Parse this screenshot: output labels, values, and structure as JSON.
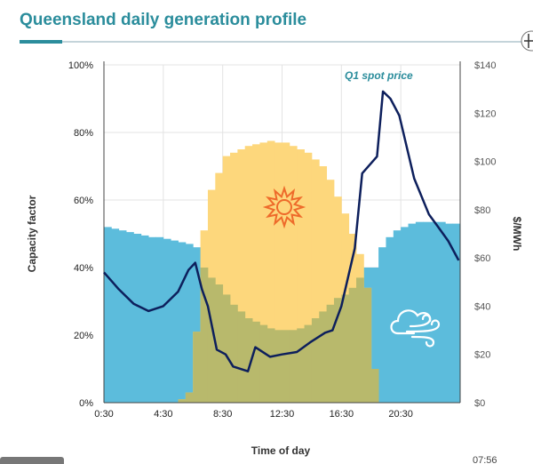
{
  "header": {
    "title": "Queensland daily generation profile",
    "expand_icon": "plus-circle-icon"
  },
  "colors": {
    "title": "#2b8d9c",
    "wind": "#5cbcdc",
    "solar": "#fdd77c",
    "overlap": "#b8b96c",
    "price": "#0d1f5c",
    "annotation": "#2b8d9c",
    "sun_icon": "#ee6a2a"
  },
  "icons": {
    "solar": "sun-icon",
    "wind": "cloud-wind-icon"
  },
  "video": {
    "timestamp": "07:56"
  },
  "chart_data": {
    "type": "area",
    "title": "Queensland daily generation profile",
    "xlabel": "Time of day",
    "ylabel": "Capacity factor",
    "y2label": "$/MWh",
    "ylim": [
      0,
      100
    ],
    "y2lim": [
      0,
      140
    ],
    "xlim": [
      "0:30",
      "24:30"
    ],
    "xticks": [
      "0:30",
      "4:30",
      "8:30",
      "12:30",
      "16:30",
      "20:30"
    ],
    "yticks": [
      "0%",
      "20%",
      "40%",
      "60%",
      "80%",
      "100%"
    ],
    "y2ticks": [
      "$0",
      "$20",
      "$40",
      "$60",
      "$80",
      "$100",
      "$120",
      "$140"
    ],
    "grid": true,
    "times": [
      "0:30",
      "1:00",
      "1:30",
      "2:00",
      "2:30",
      "3:00",
      "3:30",
      "4:00",
      "4:30",
      "5:00",
      "5:30",
      "6:00",
      "6:30",
      "7:00",
      "7:30",
      "8:00",
      "8:30",
      "9:00",
      "9:30",
      "10:00",
      "10:30",
      "11:00",
      "11:30",
      "12:00",
      "12:30",
      "13:00",
      "13:30",
      "14:00",
      "14:30",
      "15:00",
      "15:30",
      "16:00",
      "16:30",
      "17:00",
      "17:30",
      "18:00",
      "18:30",
      "19:00",
      "19:30",
      "20:00",
      "20:30",
      "21:00",
      "21:30",
      "22:00",
      "22:30",
      "23:00",
      "23:30",
      "24:00"
    ],
    "series": [
      {
        "key": "wind",
        "axis": "left",
        "values": [
          52,
          51.5,
          51,
          50.5,
          50,
          49.5,
          49,
          49,
          48.5,
          48,
          47.5,
          47,
          46,
          40,
          37,
          35,
          32,
          29,
          27,
          25,
          24,
          23,
          22,
          21.5,
          21.5,
          21.5,
          22,
          23,
          25,
          27,
          29,
          31,
          32,
          34,
          37,
          40,
          40,
          46,
          49,
          51,
          52,
          53,
          53.5,
          53.5,
          53.5,
          53.5,
          53,
          53
        ]
      },
      {
        "key": "solar",
        "axis": "left",
        "values": [
          0,
          0,
          0,
          0,
          0,
          0,
          0,
          0,
          0,
          0,
          1,
          3,
          21,
          51,
          63,
          68,
          73,
          74,
          75,
          76,
          76.5,
          77,
          77.5,
          77,
          77,
          76,
          75,
          74,
          72,
          70,
          66,
          61,
          56,
          50,
          44,
          34,
          10,
          0,
          0,
          0,
          0,
          0,
          0,
          0,
          0,
          0,
          0,
          0
        ]
      },
      {
        "key": "price",
        "name": "Q1 spot price",
        "axis": "right",
        "type": "line",
        "points": [
          [
            "0:30",
            54
          ],
          [
            "1:30",
            47
          ],
          [
            "2:30",
            41
          ],
          [
            "3:30",
            38
          ],
          [
            "4:30",
            40
          ],
          [
            "5:30",
            46
          ],
          [
            "6:12",
            55
          ],
          [
            "6:39",
            58
          ],
          [
            "7:06",
            47
          ],
          [
            "7:30",
            40
          ],
          [
            "8:06",
            22
          ],
          [
            "8:42",
            20
          ],
          [
            "9:12",
            15
          ],
          [
            "10:12",
            13
          ],
          [
            "10:42",
            23
          ],
          [
            "11:42",
            19
          ],
          [
            "12:30",
            20
          ],
          [
            "13:30",
            21
          ],
          [
            "14:24",
            25
          ],
          [
            "15:24",
            29
          ],
          [
            "15:54",
            30
          ],
          [
            "16:30",
            40
          ],
          [
            "17:24",
            64
          ],
          [
            "17:54",
            95
          ],
          [
            "18:54",
            102
          ],
          [
            "19:18",
            129
          ],
          [
            "19:48",
            126
          ],
          [
            "20:24",
            119
          ],
          [
            "21:24",
            93
          ],
          [
            "22:24",
            78
          ],
          [
            "23:00",
            73
          ],
          [
            "23:42",
            67
          ],
          [
            "24:24",
            59
          ]
        ]
      }
    ],
    "annotations": [
      "Q1 spot price"
    ]
  }
}
